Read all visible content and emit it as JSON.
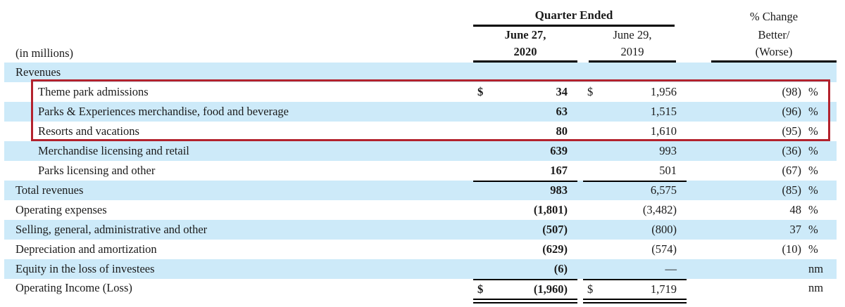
{
  "colors": {
    "stripe": "#cdeaf9",
    "highlight": "#b3222d",
    "rule": "#000000",
    "text": "#1b1b1b"
  },
  "header": {
    "in_millions": "(in millions)",
    "quarter_ended": "Quarter Ended",
    "pct_change": "% Change",
    "col_2020_l1": "June 27,",
    "col_2020_l2": "2020",
    "col_2019_l1": "June 29,",
    "col_2019_l2": "2019",
    "better_l1": "Better/",
    "better_l2": "(Worse)"
  },
  "table": {
    "rows": [
      {
        "label": "Revenues",
        "indent": 0,
        "stripe": true,
        "d2020": "",
        "v2020": "",
        "d2019": "",
        "v2019": "",
        "pct": "",
        "unit": ""
      },
      {
        "label": "Theme park admissions",
        "indent": 1,
        "stripe": false,
        "d2020": "$",
        "v2020": "34",
        "d2019": "$",
        "v2019": "1,956",
        "pct": "(98)",
        "unit": "%",
        "highlighted": true
      },
      {
        "label": "Parks & Experiences merchandise, food and beverage",
        "indent": 1,
        "stripe": true,
        "d2020": "",
        "v2020": "63",
        "d2019": "",
        "v2019": "1,515",
        "pct": "(96)",
        "unit": "%",
        "highlighted": true
      },
      {
        "label": "Resorts and vacations",
        "indent": 1,
        "stripe": false,
        "d2020": "",
        "v2020": "80",
        "d2019": "",
        "v2019": "1,610",
        "pct": "(95)",
        "unit": "%",
        "highlighted": true
      },
      {
        "label": "Merchandise licensing and retail",
        "indent": 1,
        "stripe": true,
        "d2020": "",
        "v2020": "639",
        "d2019": "",
        "v2019": "993",
        "pct": "(36)",
        "unit": "%"
      },
      {
        "label": "Parks licensing and other",
        "indent": 1,
        "stripe": false,
        "d2020": "",
        "v2020": "167",
        "d2019": "",
        "v2019": "501",
        "pct": "(67)",
        "unit": "%",
        "rule_bottom": true
      },
      {
        "label": "Total revenues",
        "indent": 0,
        "stripe": true,
        "d2020": "",
        "v2020": "983",
        "d2019": "",
        "v2019": "6,575",
        "pct": "(85)",
        "unit": "%"
      },
      {
        "label": "Operating expenses",
        "indent": 0,
        "stripe": false,
        "d2020": "",
        "v2020": "(1,801)",
        "d2019": "",
        "v2019": "(3,482)",
        "pct": "48",
        "unit": "%"
      },
      {
        "label": "Selling, general, administrative and other",
        "indent": 0,
        "stripe": true,
        "d2020": "",
        "v2020": "(507)",
        "d2019": "",
        "v2019": "(800)",
        "pct": "37",
        "unit": "%"
      },
      {
        "label": "Depreciation and amortization",
        "indent": 0,
        "stripe": false,
        "d2020": "",
        "v2020": "(629)",
        "d2019": "",
        "v2019": "(574)",
        "pct": "(10)",
        "unit": "%"
      },
      {
        "label": "Equity in the loss of investees",
        "indent": 0,
        "stripe": true,
        "d2020": "",
        "v2020": "(6)",
        "d2019": "",
        "v2019": "—",
        "pct": "",
        "unit": "nm"
      },
      {
        "label": "Operating Income (Loss)",
        "indent": 0,
        "stripe": false,
        "d2020": "$",
        "v2020": "(1,960)",
        "d2019": "$",
        "v2019": "1,719",
        "pct": "",
        "unit": "nm",
        "rule_top": true,
        "double_bottom": true,
        "last": true
      }
    ]
  },
  "annotation": {
    "type": "highlight-box",
    "color": "#b3222d",
    "covers_rows": [
      "Theme park admissions",
      "Parks & Experiences merchandise, food and beverage",
      "Resorts and vacations"
    ]
  }
}
